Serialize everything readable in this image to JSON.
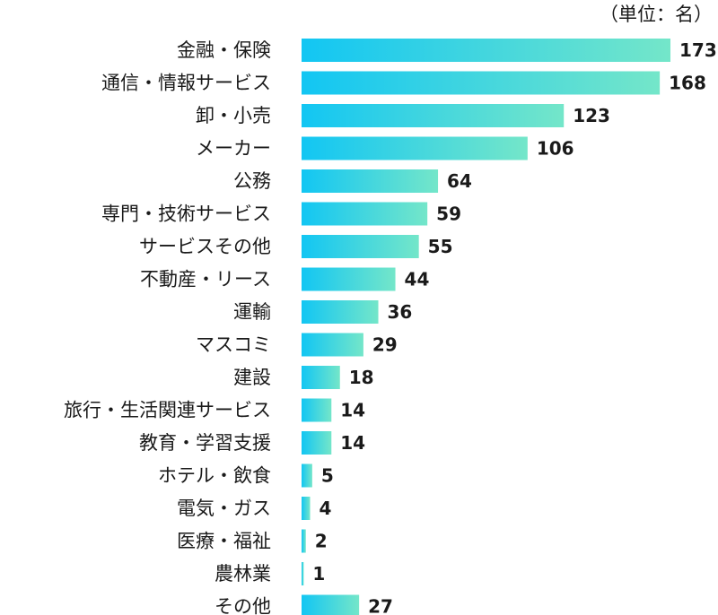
{
  "unit_note": "（単位：名）",
  "chart_data": {
    "type": "bar",
    "orientation": "horizontal",
    "categories": [
      "金融・保険",
      "通信・情報サービス",
      "卸・小売",
      "メーカー",
      "公務",
      "専門・技術サービス",
      "サービスその他",
      "不動産・リース",
      "運輸",
      "マスコミ",
      "建設",
      "旅行・生活関連サービス",
      "教育・学習支援",
      "ホテル・飲食",
      "電気・ガス",
      "医療・福祉",
      "農林業",
      "その他"
    ],
    "values": [
      173,
      168,
      123,
      106,
      64,
      59,
      55,
      44,
      36,
      29,
      18,
      14,
      14,
      5,
      4,
      2,
      1,
      27
    ],
    "xlim": [
      0,
      173
    ],
    "grid": false,
    "colors": {
      "bar_start": "#12c6f3",
      "bar_end": "#74e6c9",
      "text": "#1a1a1a"
    }
  }
}
